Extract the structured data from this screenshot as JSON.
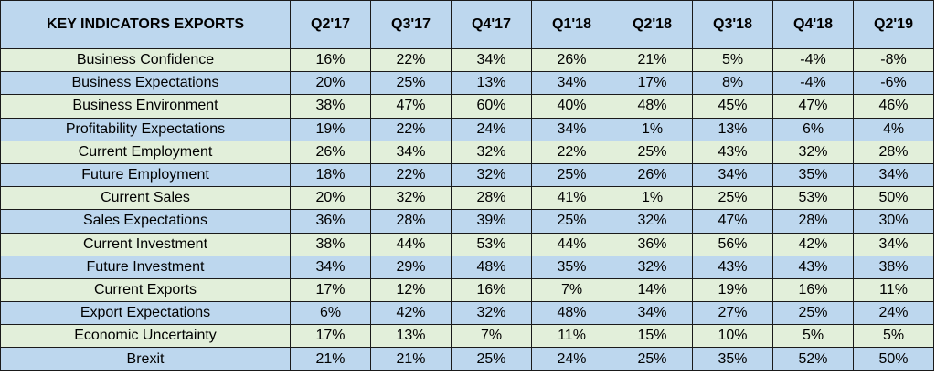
{
  "chart_data": {
    "type": "table",
    "title": "KEY INDICATORS EXPORTS",
    "columns": [
      "Q2'17",
      "Q3'17",
      "Q4'17",
      "Q1'18",
      "Q2'18",
      "Q3'18",
      "Q4'18",
      "Q2'19"
    ],
    "rows": [
      {
        "label": "Business Confidence",
        "values": [
          "16%",
          "22%",
          "34%",
          "26%",
          "21%",
          "5%",
          "-4%",
          "-8%"
        ]
      },
      {
        "label": "Business Expectations",
        "values": [
          "20%",
          "25%",
          "13%",
          "34%",
          "17%",
          "8%",
          "-4%",
          "-6%"
        ]
      },
      {
        "label": "Business Environment",
        "values": [
          "38%",
          "47%",
          "60%",
          "40%",
          "48%",
          "45%",
          "47%",
          "46%"
        ]
      },
      {
        "label": "Profitability Expectations",
        "values": [
          "19%",
          "22%",
          "24%",
          "34%",
          "1%",
          "13%",
          "6%",
          "4%"
        ]
      },
      {
        "label": "Current Employment",
        "values": [
          "26%",
          "34%",
          "32%",
          "22%",
          "25%",
          "43%",
          "32%",
          "28%"
        ]
      },
      {
        "label": "Future Employment",
        "values": [
          "18%",
          "22%",
          "32%",
          "25%",
          "26%",
          "34%",
          "35%",
          "34%"
        ]
      },
      {
        "label": "Current Sales",
        "values": [
          "20%",
          "32%",
          "28%",
          "41%",
          "1%",
          "25%",
          "53%",
          "50%"
        ]
      },
      {
        "label": "Sales Expectations",
        "values": [
          "36%",
          "28%",
          "39%",
          "25%",
          "32%",
          "47%",
          "28%",
          "30%"
        ]
      },
      {
        "label": "Current Investment",
        "values": [
          "38%",
          "44%",
          "53%",
          "44%",
          "36%",
          "56%",
          "42%",
          "34%"
        ]
      },
      {
        "label": "Future Investment",
        "values": [
          "34%",
          "29%",
          "48%",
          "35%",
          "32%",
          "43%",
          "43%",
          "38%"
        ]
      },
      {
        "label": "Current Exports",
        "values": [
          "17%",
          "12%",
          "16%",
          "7%",
          "14%",
          "19%",
          "16%",
          "11%"
        ]
      },
      {
        "label": "Export Expectations",
        "values": [
          "6%",
          "42%",
          "32%",
          "48%",
          "34%",
          "27%",
          "25%",
          "24%"
        ]
      },
      {
        "label": "Economic Uncertainty",
        "values": [
          "17%",
          "13%",
          "7%",
          "11%",
          "15%",
          "10%",
          "5%",
          "5%"
        ]
      },
      {
        "label": "Brexit",
        "values": [
          "21%",
          "21%",
          "25%",
          "24%",
          "25%",
          "35%",
          "52%",
          "50%"
        ]
      }
    ]
  },
  "colors": {
    "header_bg": "#bdd7ee",
    "row_green": "#e2efda",
    "row_blue": "#bdd7ee",
    "border": "#1a1a1a"
  }
}
